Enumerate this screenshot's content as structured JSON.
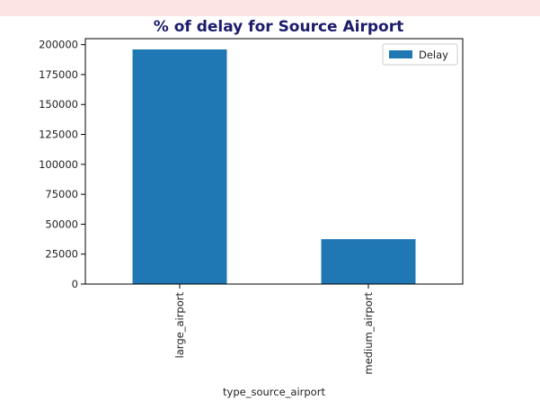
{
  "chart_data": {
    "type": "bar",
    "title": "% of delay for Source Airport",
    "xlabel": "type_source_airport",
    "ylabel": "",
    "categories": [
      "large_airport",
      "medium_airport"
    ],
    "series": [
      {
        "name": "Delay",
        "values": [
          196000,
          37500
        ]
      }
    ],
    "ylim": [
      0,
      205000
    ],
    "yticks": [
      0,
      25000,
      50000,
      75000,
      100000,
      125000,
      150000,
      175000,
      200000
    ],
    "ytick_labels": [
      "0",
      "25000",
      "50000",
      "75000",
      "100000",
      "125000",
      "150000",
      "175000",
      "200000"
    ],
    "grid": false,
    "legend_position": "top-right",
    "colors": {
      "bar": "#1f77b4",
      "title": "#1c1c6b",
      "band": "#fce4e4"
    }
  }
}
